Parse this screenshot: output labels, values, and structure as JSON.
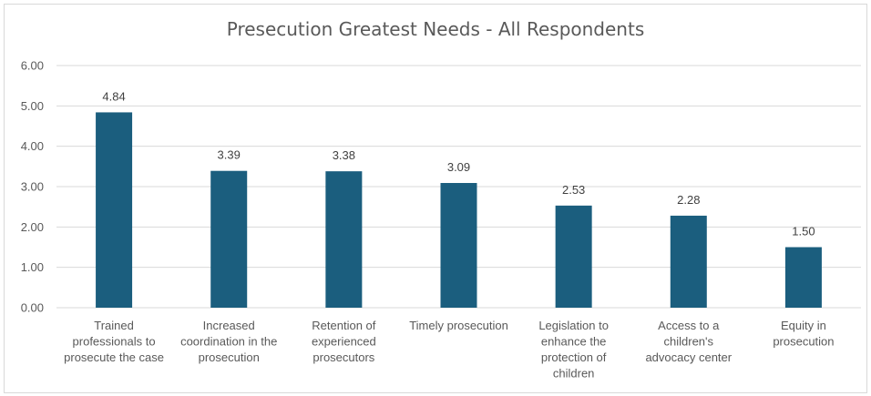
{
  "chart_data": {
    "type": "bar",
    "title": "Presecution Greatest Needs - All Respondents",
    "categories": [
      [
        "Trained",
        "professionals to",
        "prosecute the case"
      ],
      [
        "Increased",
        "coordination in the",
        "prosecution"
      ],
      [
        "Retention of",
        "experienced",
        "prosecutors"
      ],
      [
        "Timely prosecution"
      ],
      [
        "Legislation to",
        "enhance the",
        "protection of",
        "children"
      ],
      [
        "Access to a",
        "children's",
        "advocacy center"
      ],
      [
        "Equity in",
        "prosecution"
      ]
    ],
    "values": [
      4.84,
      3.39,
      3.38,
      3.09,
      2.53,
      2.28,
      1.5
    ],
    "data_labels": [
      "4.84",
      "3.39",
      "3.38",
      "3.09",
      "2.53",
      "2.28",
      "1.50"
    ],
    "ylim": [
      0,
      6
    ],
    "yticks": [
      "0.00",
      "1.00",
      "2.00",
      "3.00",
      "4.00",
      "5.00",
      "6.00"
    ],
    "xlabel": "",
    "ylabel": "",
    "grid": true,
    "legend": "none",
    "colors": {
      "bar": "#1b5e7e",
      "grid": "#d9d9d9",
      "text": "#595959"
    }
  }
}
